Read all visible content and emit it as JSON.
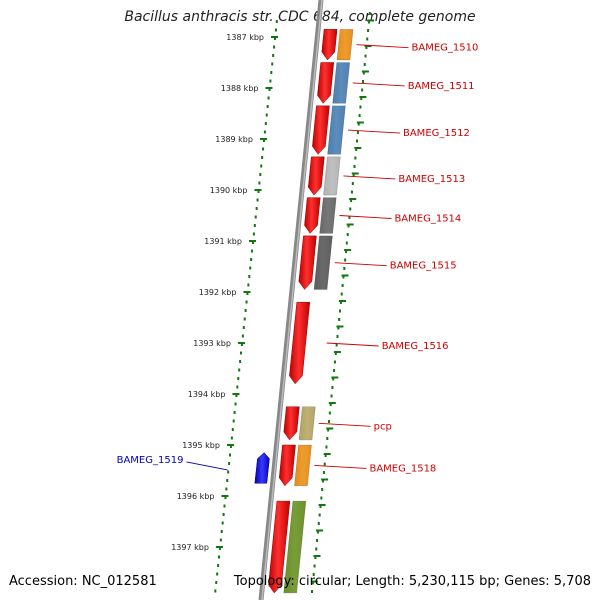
{
  "title": "Bacillus anthracis str. CDC 684, complete genome",
  "footer": {
    "accession": "Accession: NC_012581",
    "topology": "Topology: circular; Length: 5,230,115 bp; Genes: 5,708"
  },
  "scale_unit": "kbp",
  "scale_labels": [
    "1387 kbp",
    "1388 kbp",
    "1389 kbp",
    "1390 kbp",
    "1391 kbp",
    "1392 kbp",
    "1393 kbp",
    "1394 kbp",
    "1395 kbp",
    "1396 kbp",
    "1397 kbp"
  ],
  "colors": {
    "gene_forward": "#ee1111",
    "label_forward": "#cc0000",
    "label_reverse": "#0000bb",
    "reverse_gene": "#1a1aee",
    "tick": "#117711",
    "backbone": "#888888"
  },
  "genes": [
    {
      "name": "BAMEG_1510",
      "strand": "+",
      "start_kbp": 1386.85,
      "end_kbp": 1387.45,
      "band_color": "#ff9911"
    },
    {
      "name": "BAMEG_1511",
      "strand": "+",
      "start_kbp": 1387.5,
      "end_kbp": 1388.3,
      "band_color": "#4a86c0"
    },
    {
      "name": "BAMEG_1512",
      "strand": "+",
      "start_kbp": 1388.35,
      "end_kbp": 1389.3,
      "band_color": "#4a86c0"
    },
    {
      "name": "BAMEG_1513",
      "strand": "+",
      "start_kbp": 1389.35,
      "end_kbp": 1390.1,
      "band_color": "#c4c4c4"
    },
    {
      "name": "BAMEG_1514",
      "strand": "+",
      "start_kbp": 1390.15,
      "end_kbp": 1390.85,
      "band_color": "#6c6c6c"
    },
    {
      "name": "BAMEG_1515",
      "strand": "+",
      "start_kbp": 1390.9,
      "end_kbp": 1391.95,
      "band_color": "#5c5c5c"
    },
    {
      "name": "BAMEG_1516",
      "strand": "+",
      "start_kbp": 1392.2,
      "end_kbp": 1393.8,
      "band_color": null
    },
    {
      "name": "pcp",
      "strand": "+",
      "start_kbp": 1394.25,
      "end_kbp": 1394.9,
      "band_color": "#c4b268"
    },
    {
      "name": "BAMEG_1518",
      "strand": "+",
      "start_kbp": 1395.0,
      "end_kbp": 1395.8,
      "band_color": "#ff9911"
    },
    {
      "name": "BAMEG_1519",
      "strand": "-",
      "start_kbp": 1395.15,
      "end_kbp": 1395.75,
      "band_color": null
    },
    {
      "name": "",
      "strand": "+",
      "start_kbp": 1396.1,
      "end_kbp": 1397.9,
      "band_color": "#6e9a20"
    }
  ]
}
